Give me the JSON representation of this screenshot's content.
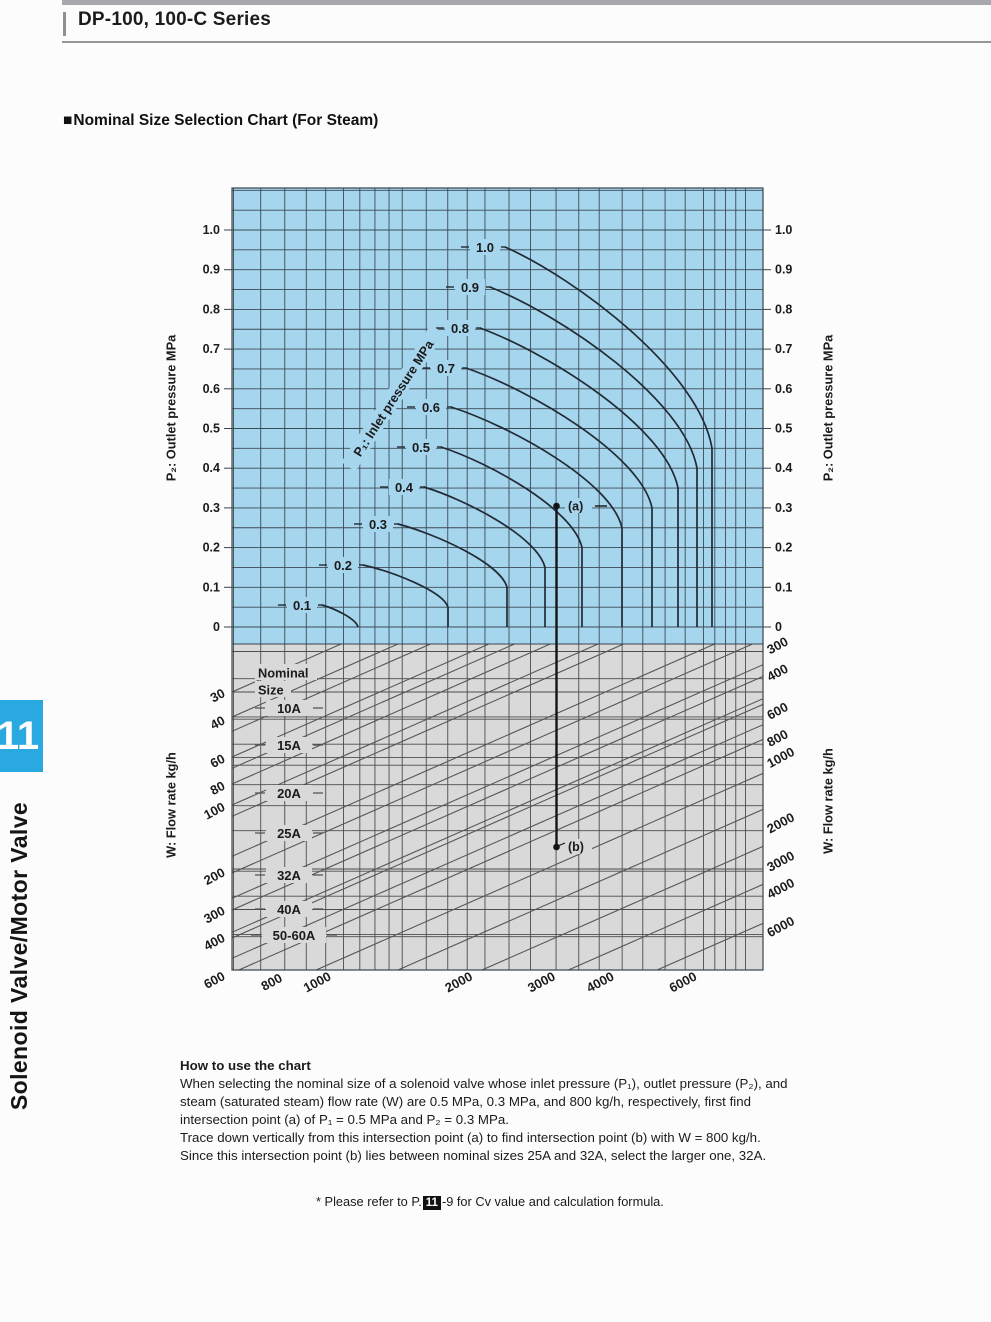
{
  "page": {
    "header": {
      "title": "DP-100, 100-C Series"
    },
    "section_title": {
      "marker": "■",
      "text": "Nominal Size Selection Chart (For Steam)"
    },
    "sidebar": {
      "tab_number": "11",
      "label": "Solenoid Valve/Motor Valve",
      "accent_color": "#29a9e0"
    },
    "how_to": {
      "heading": "How to use the chart",
      "lines": [
        "When selecting the nominal size of a solenoid valve whose inlet pressure (P₁), outlet pressure (P₂), and",
        "steam (saturated steam) flow rate (W) are 0.5 MPa, 0.3 MPa, and 800 kg/h, respectively, first find",
        "intersection point (a) of P₁ = 0.5 MPa and P₂ = 0.3 MPa.",
        "Trace down vertically from this intersection point (a) to find intersection point (b) with W = 800 kg/h.",
        "Since this intersection point (b) lies between nominal sizes 25A and 32A, select the larger one, 32A."
      ]
    },
    "footnote": {
      "prefix": "* Please refer to P.",
      "page_badge": "11",
      "suffix": "-9 for Cv value and calculation formula."
    }
  },
  "chart_data": {
    "type": "nomogram (line-family selection chart)",
    "title": "Nominal Size Selection Chart (For Steam)",
    "upper_panel": {
      "y_axis_left": {
        "label": "P₂: Outlet pressure MPa",
        "ticks": [
          "1.0",
          "0.9",
          "0.8",
          "0.7",
          "0.6",
          "0.5",
          "0.4",
          "0.3",
          "0.2",
          "0.1",
          "0"
        ],
        "range": [
          0,
          1.0
        ]
      },
      "y_axis_right": {
        "label": "P₂: Outlet pressure MPa",
        "ticks": [
          "1.0",
          "0.9",
          "0.8",
          "0.7",
          "0.6",
          "0.5",
          "0.4",
          "0.3",
          "0.2",
          "0.1",
          "0"
        ],
        "range": [
          0,
          1.0
        ]
      },
      "curve_family_label": "P₁: Inlet pressure MPa",
      "p1_values": [
        "0.1",
        "0.2",
        "0.3",
        "0.4",
        "0.5",
        "0.6",
        "0.7",
        "0.8",
        "0.9",
        "1.0"
      ],
      "note": "each P₁ curve bends down-right and ends in a vertical drop to P₂ = 0 (choked flow)"
    },
    "lower_panel": {
      "left_axis": {
        "label": "W: Flow rate kg/h",
        "ticks": [
          30,
          40,
          60,
          80,
          100,
          200,
          300,
          400,
          600
        ],
        "scale": "log"
      },
      "right_axis": {
        "label": "W: Flow rate kg/h",
        "ticks": [
          300,
          400,
          600,
          800,
          1000,
          2000,
          3000,
          4000,
          6000
        ],
        "scale": "log"
      },
      "bottom_axis": {
        "ticks": [
          800,
          1000,
          2000,
          3000,
          4000,
          6000
        ],
        "scale": "log"
      },
      "nominal_size_header": "Nominal Size",
      "nominal_sizes": [
        "10A",
        "15A",
        "20A",
        "25A",
        "32A",
        "40A",
        "50-60A"
      ]
    },
    "annotations": {
      "point_a": {
        "label": "(a)",
        "meaning": "intersection of P₁ = 0.5 MPa curve with P₂ = 0.3 MPa"
      },
      "point_b": {
        "label": "(b)",
        "meaning": "vertical trace from (a) at W = 800 kg/h, between 25A and 32A lines"
      }
    },
    "layout": {
      "grid": true,
      "x_scale": "log",
      "upper_bg": "#a6d5ee",
      "lower_bg": "#d9d9d9",
      "upper_grid_color": "#3c4a55",
      "lower_grid_color": "#4c4c4c",
      "diagonal_color": "#565656",
      "curve_color": "#212b34",
      "annotation_color": "#141414"
    }
  }
}
